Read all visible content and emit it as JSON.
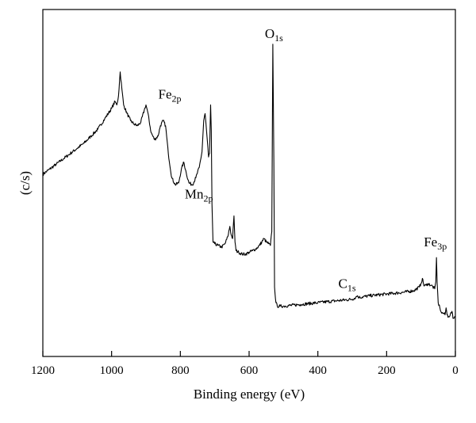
{
  "chart_data": {
    "type": "line",
    "title": "",
    "xlabel": "Binding energy (eV)",
    "ylabel": "(c/s)",
    "xlim": [
      1200,
      0
    ],
    "x_reversed": true,
    "y_units": "arbitrary (no tick labels)",
    "ylim": [
      0,
      100
    ],
    "x_ticks": [
      1200,
      1000,
      800,
      600,
      400,
      200,
      0
    ],
    "x_tick_labels": [
      "1200",
      "1000",
      "800",
      "600",
      "400",
      "200",
      "0"
    ],
    "grid": false,
    "legend": "none",
    "line_color": "#000000",
    "series": [
      {
        "points": [
          [
            1200,
            52.5
          ],
          [
            1180,
            54.0
          ],
          [
            1160,
            55.5
          ],
          [
            1140,
            57.0
          ],
          [
            1120,
            58.5
          ],
          [
            1100,
            60.0
          ],
          [
            1080,
            61.5
          ],
          [
            1060,
            63.5
          ],
          [
            1040,
            65.5
          ],
          [
            1020,
            68.5
          ],
          [
            1000,
            71.5
          ],
          [
            990,
            73.5
          ],
          [
            985,
            72.5
          ],
          [
            980,
            75.0
          ],
          [
            975,
            82.0
          ],
          [
            970,
            77.0
          ],
          [
            965,
            72.5
          ],
          [
            955,
            70.0
          ],
          [
            945,
            68.0
          ],
          [
            935,
            67.0
          ],
          [
            925,
            66.5
          ],
          [
            915,
            67.5
          ],
          [
            905,
            71.0
          ],
          [
            900,
            72.5
          ],
          [
            895,
            70.5
          ],
          [
            885,
            64.5
          ],
          [
            875,
            62.5
          ],
          [
            865,
            63.5
          ],
          [
            858,
            66.5
          ],
          [
            850,
            68.0
          ],
          [
            843,
            66.5
          ],
          [
            835,
            58.5
          ],
          [
            825,
            51.5
          ],
          [
            815,
            49.5
          ],
          [
            805,
            50.0
          ],
          [
            797,
            54.0
          ],
          [
            790,
            56.0
          ],
          [
            783,
            53.0
          ],
          [
            775,
            50.0
          ],
          [
            765,
            49.5
          ],
          [
            755,
            51.5
          ],
          [
            745,
            54.5
          ],
          [
            737,
            59.0
          ],
          [
            732,
            68.0
          ],
          [
            728,
            70.0
          ],
          [
            723,
            64.0
          ],
          [
            718,
            57.5
          ],
          [
            715,
            58.5
          ],
          [
            712,
            72.5
          ],
          [
            710,
            65.0
          ],
          [
            708,
            44.0
          ],
          [
            705,
            33.0
          ],
          [
            700,
            32.5
          ],
          [
            690,
            32.0
          ],
          [
            680,
            31.5
          ],
          [
            670,
            32.5
          ],
          [
            662,
            34.5
          ],
          [
            656,
            37.5
          ],
          [
            652,
            35.0
          ],
          [
            648,
            34.0
          ],
          [
            644,
            40.5
          ],
          [
            641,
            33.0
          ],
          [
            638,
            30.5
          ],
          [
            630,
            30.0
          ],
          [
            620,
            29.5
          ],
          [
            610,
            29.5
          ],
          [
            600,
            30.0
          ],
          [
            590,
            30.5
          ],
          [
            580,
            31.0
          ],
          [
            570,
            32.0
          ],
          [
            563,
            33.0
          ],
          [
            557,
            34.0
          ],
          [
            550,
            33.0
          ],
          [
            543,
            32.5
          ],
          [
            538,
            32.0
          ],
          [
            534,
            36.0
          ],
          [
            531,
            90.0
          ],
          [
            528,
            56.0
          ],
          [
            526,
            20.0
          ],
          [
            522,
            15.5
          ],
          [
            518,
            14.5
          ],
          [
            510,
            14.5
          ],
          [
            500,
            14.5
          ],
          [
            450,
            15.0
          ],
          [
            400,
            15.5
          ],
          [
            350,
            16.0
          ],
          [
            300,
            16.5
          ],
          [
            290,
            17.0
          ],
          [
            285,
            17.5
          ],
          [
            280,
            17.0
          ],
          [
            250,
            17.5
          ],
          [
            200,
            18.0
          ],
          [
            150,
            18.5
          ],
          [
            120,
            19.0
          ],
          [
            105,
            20.0
          ],
          [
            100,
            21.0
          ],
          [
            96,
            22.5
          ],
          [
            92,
            20.5
          ],
          [
            85,
            20.5
          ],
          [
            80,
            21.0
          ],
          [
            70,
            20.5
          ],
          [
            60,
            19.5
          ],
          [
            57,
            21.5
          ],
          [
            55,
            28.5
          ],
          [
            53,
            21.0
          ],
          [
            50,
            15.5
          ],
          [
            45,
            14.0
          ],
          [
            40,
            12.5
          ],
          [
            35,
            12.5
          ],
          [
            30,
            12.0
          ],
          [
            27,
            14.0
          ],
          [
            24,
            12.0
          ],
          [
            20,
            11.5
          ],
          [
            15,
            12.0
          ],
          [
            10,
            13.0
          ],
          [
            7,
            11.0
          ],
          [
            4,
            11.0
          ],
          [
            2,
            11.5
          ],
          [
            0,
            11.5
          ]
        ]
      }
    ],
    "annotations": [
      {
        "main": "O",
        "sub": "1s",
        "x": 531,
        "y": 90
      },
      {
        "main": "Fe",
        "sub": "2p",
        "x": 712,
        "y": 72.5
      },
      {
        "main": "Mn",
        "sub": "2p",
        "x": 644,
        "y": 40.5
      },
      {
        "main": "C",
        "sub": "1s",
        "x": 285,
        "y": 17.5
      },
      {
        "main": "Fe",
        "sub": "3p",
        "x": 55,
        "y": 28.5
      }
    ]
  }
}
